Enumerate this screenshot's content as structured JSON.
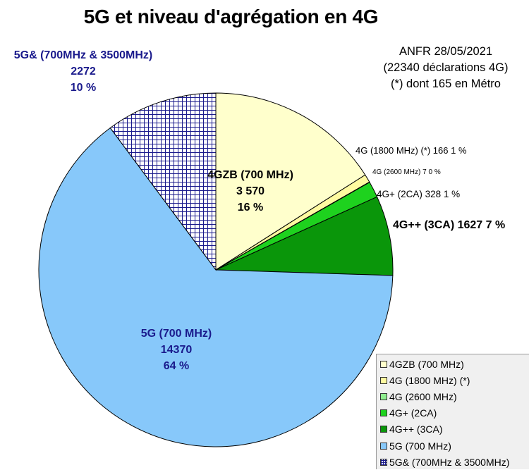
{
  "chart_data": {
    "type": "pie",
    "title": "5G et niveau d'agrégation en 4G",
    "source_note": [
      "ANFR 28/05/2021",
      "(22340 déclarations 4G)",
      "(*) dont 165 en Métro"
    ],
    "slices": [
      {
        "key": "4gzb",
        "name": "4GZB (700 MHz)",
        "value": 3570,
        "percent": 16,
        "color": "#ffffcc",
        "label_lines": [
          "4GZB (700 MHz)",
          "3 570",
          "16 %"
        ]
      },
      {
        "key": "1800",
        "name": "4G (1800 MHz) (*)",
        "value": 166,
        "percent": 1,
        "color": "#fffaa0",
        "label_lines": [
          "4G (1800 MHz) (*) 166 1 %"
        ]
      },
      {
        "key": "2600",
        "name": "4G (2600 MHz)",
        "value": 7,
        "percent": 0,
        "color": "#90ee90",
        "label_lines": [
          "4G (2600 MHz) 7 0 %"
        ]
      },
      {
        "key": "4gp",
        "name": "4G+ (2CA)",
        "value": 328,
        "percent": 1,
        "color": "#1ed21e",
        "label_lines": [
          "4G+ (2CA) 328 1 %"
        ]
      },
      {
        "key": "4gpp",
        "name": "4G++ (3CA)",
        "value": 1627,
        "percent": 7,
        "color": "#0a960a",
        "label_lines": [
          "4G++ (3CA) 1627 7 %"
        ]
      },
      {
        "key": "5g",
        "name": "5G (700 MHz)",
        "value": 14370,
        "percent": 64,
        "color": "#87c8fa",
        "label_lines": [
          "5G (700 MHz)",
          "14370",
          "64 %"
        ]
      },
      {
        "key": "5ga",
        "name": "5G& (700MHz & 3500MHz)",
        "value": 2272,
        "percent": 10,
        "color": "#ffffff",
        "pattern": "grid",
        "pattern_color": "#1a1a8c",
        "label_lines": [
          "5G& (700MHz & 3500MHz)",
          "2272",
          "10 %"
        ]
      }
    ],
    "legend": {
      "position": "bottom-right"
    }
  }
}
